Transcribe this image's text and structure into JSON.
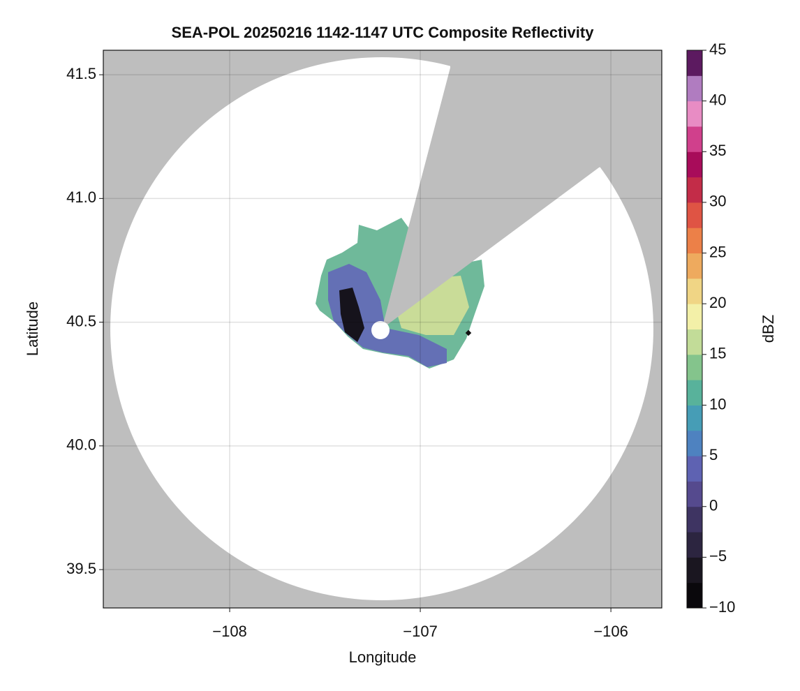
{
  "chart_data": {
    "type": "map",
    "title": "SEA-POL 20250216 1142-1147 UTC Composite Reflectivity",
    "x_label": "Longitude",
    "y_label": "Latitude",
    "xlim": [
      -108.663,
      -105.733
    ],
    "ylim": [
      39.345,
      41.599
    ],
    "xticks": [
      {
        "value": -108,
        "label": "−108"
      },
      {
        "value": -107,
        "label": "−107"
      },
      {
        "value": -106,
        "label": "−106"
      }
    ],
    "yticks": [
      39.5,
      {
        "value": 40,
        "label": "40.0"
      },
      40.5,
      {
        "value": 41,
        "label": "41.0"
      },
      41.5
    ],
    "grid": true,
    "background_color": "#bebebe",
    "colorbar": {
      "label": "dBZ",
      "lim": [
        -10,
        45
      ],
      "ticks": [
        {
          "value": -10,
          "label": "−10"
        },
        {
          "value": -5,
          "label": "−5"
        },
        0,
        5,
        10,
        15,
        20,
        25,
        30,
        35,
        40,
        45
      ],
      "colors": [
        "#0a080c",
        "#1a1620",
        "#2c2540",
        "#3e3462",
        "#554a8e",
        "#5e62b2",
        "#4e82c0",
        "#469db6",
        "#58b29b",
        "#84c48c",
        "#c2dc98",
        "#f3f0a8",
        "#f0d585",
        "#eeaa5e",
        "#ec8048",
        "#df5444",
        "#c32c48",
        "#a80c5a",
        "#d0408c",
        "#e88cc4",
        "#b07cc0",
        "#5c1a60"
      ]
    }
  }
}
